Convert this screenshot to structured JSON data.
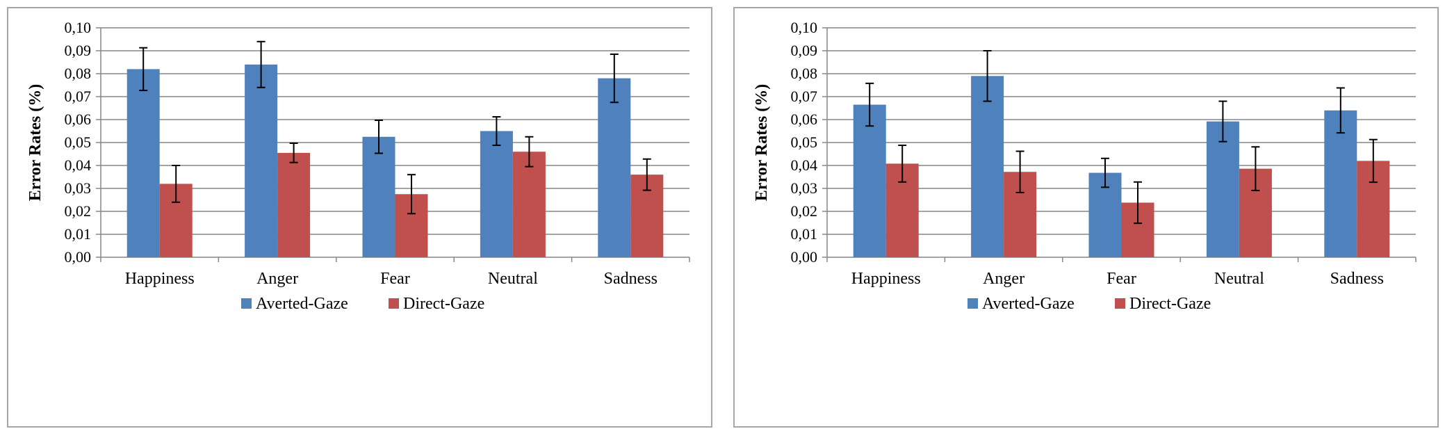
{
  "chart_data": [
    {
      "type": "bar",
      "title": "",
      "xlabel": "",
      "ylabel": "Error Rates (%)",
      "ylim": [
        0,
        0.1
      ],
      "yticks": [
        "0,00",
        "0,01",
        "0,02",
        "0,03",
        "0,04",
        "0,05",
        "0,06",
        "0,07",
        "0,08",
        "0,09",
        "0,10"
      ],
      "grid": true,
      "legend_position": "bottom",
      "categories": [
        "Happiness",
        "Anger",
        "Fear",
        "Neutral",
        "Sadness"
      ],
      "series": [
        {
          "name": "Averted-Gaze",
          "color": "#4f81bd",
          "values": [
            0.082,
            0.084,
            0.0525,
            0.055,
            0.078
          ],
          "errors": [
            0.0093,
            0.01,
            0.0072,
            0.0062,
            0.0105
          ]
        },
        {
          "name": "Direct-Gaze",
          "color": "#c0504d",
          "values": [
            0.032,
            0.0455,
            0.0275,
            0.046,
            0.036
          ],
          "errors": [
            0.008,
            0.0042,
            0.0085,
            0.0065,
            0.0068
          ]
        }
      ]
    },
    {
      "type": "bar",
      "title": "",
      "xlabel": "",
      "ylabel": "Error Rates (%)",
      "ylim": [
        0,
        0.1
      ],
      "yticks": [
        "0,00",
        "0,01",
        "0,02",
        "0,03",
        "0,04",
        "0,05",
        "0,06",
        "0,07",
        "0,08",
        "0,09",
        "0,10"
      ],
      "grid": true,
      "legend_position": "bottom",
      "categories": [
        "Happiness",
        "Anger",
        "Fear",
        "Neutral",
        "Sadness"
      ],
      "series": [
        {
          "name": "Averted-Gaze",
          "color": "#4f81bd",
          "values": [
            0.0665,
            0.079,
            0.0368,
            0.0592,
            0.064
          ],
          "errors": [
            0.0093,
            0.011,
            0.0063,
            0.0088,
            0.0098
          ]
        },
        {
          "name": "Direct-Gaze",
          "color": "#c0504d",
          "values": [
            0.0408,
            0.0372,
            0.0238,
            0.0386,
            0.042
          ],
          "errors": [
            0.008,
            0.009,
            0.009,
            0.0095,
            0.0093
          ]
        }
      ]
    }
  ]
}
